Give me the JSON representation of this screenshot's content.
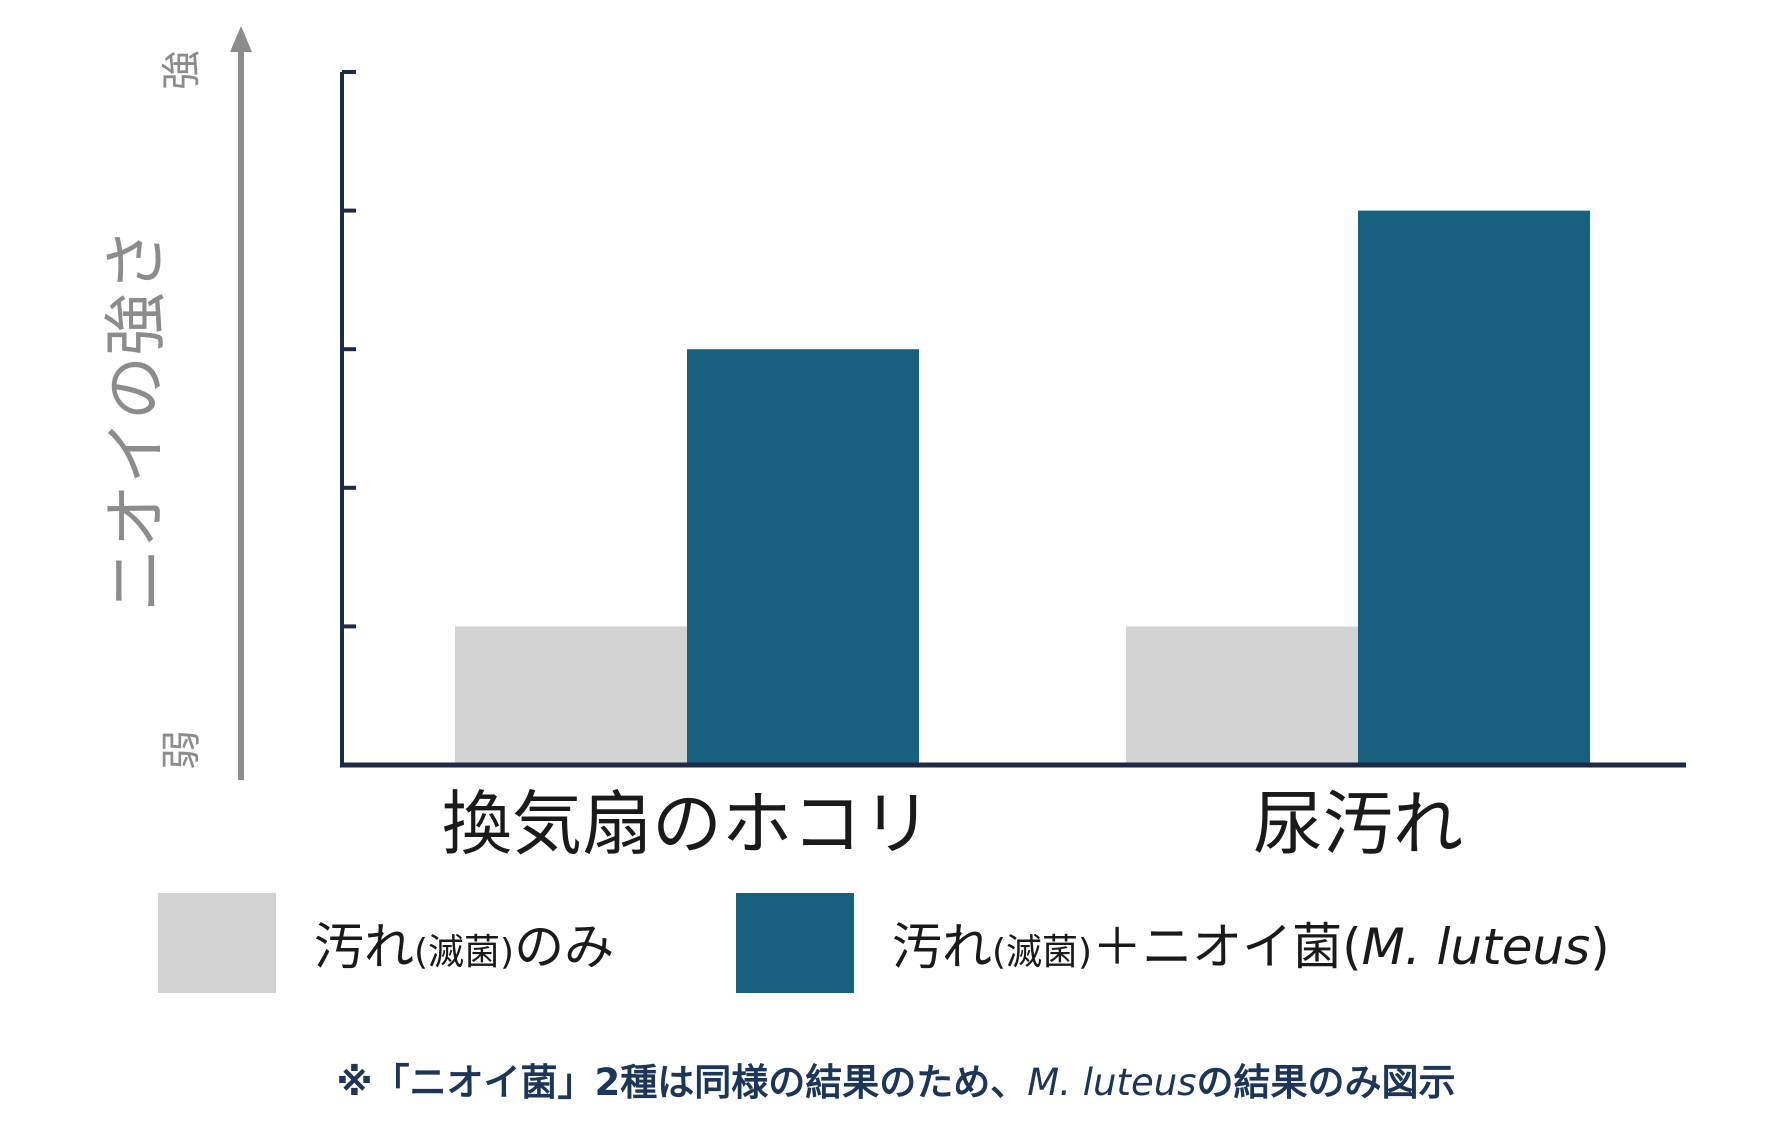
{
  "chart_data": {
    "type": "bar",
    "ylabel": "ニオイの強さ",
    "y_high_label": "強",
    "y_low_label": "弱",
    "categories": [
      "換気扇のホコリ",
      "尿汚れ"
    ],
    "series": [
      {
        "name": "汚れ(滅菌)のみ",
        "values": [
          1,
          1
        ],
        "color": "#d3d3d3"
      },
      {
        "name": "汚れ(滅菌)＋ニオイ菌(M. luteus)",
        "values": [
          3,
          4
        ],
        "color": "#186080"
      }
    ],
    "ylim": [
      0,
      5
    ],
    "yticks": [
      1,
      2,
      3,
      4,
      5
    ],
    "grid": false,
    "legend_position": "bottom"
  },
  "legend": {
    "item1": {
      "main": "汚れ",
      "paren": "(滅菌)",
      "suffix": "のみ"
    },
    "item2": {
      "main": "汚れ",
      "paren": "(滅菌)",
      "suffix": "＋ニオイ菌(",
      "italic": "M. luteus",
      "close": ")"
    }
  },
  "footnote": {
    "part1": "※「ニオイ菌」2種は同様の結果のため、",
    "italic": "M. luteus",
    "part2": "の結果のみ図示"
  }
}
